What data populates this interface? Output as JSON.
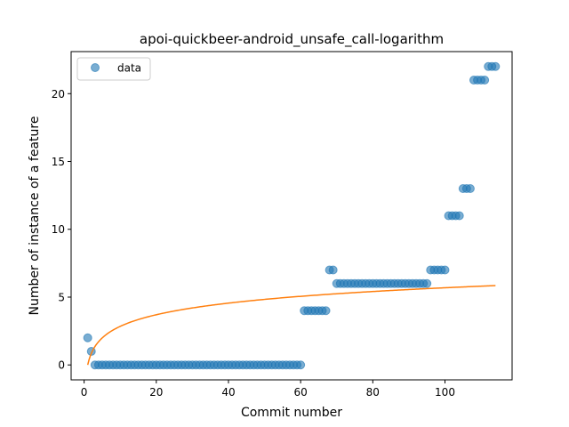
{
  "chart_data": {
    "type": "scatter",
    "title": "apoi-quickbeer-android_unsafe_call-logarithm",
    "xlabel": "Commit number",
    "ylabel": "Number of instance of a feature",
    "xlim": [
      -3.6,
      118.6
    ],
    "ylim": [
      -1.1,
      23.1
    ],
    "xticks": [
      0,
      20,
      40,
      60,
      80,
      100
    ],
    "yticks": [
      0,
      5,
      10,
      15,
      20
    ],
    "grid": false,
    "legend_position": "upper-left",
    "legend": [
      "data"
    ],
    "series": [
      {
        "name": "data",
        "kind": "scatter",
        "color": "#1f77b4",
        "points": [
          [
            1,
            2
          ],
          [
            2,
            1
          ],
          [
            3,
            0
          ],
          [
            4,
            0
          ],
          [
            5,
            0
          ],
          [
            6,
            0
          ],
          [
            7,
            0
          ],
          [
            8,
            0
          ],
          [
            9,
            0
          ],
          [
            10,
            0
          ],
          [
            11,
            0
          ],
          [
            12,
            0
          ],
          [
            13,
            0
          ],
          [
            14,
            0
          ],
          [
            15,
            0
          ],
          [
            16,
            0
          ],
          [
            17,
            0
          ],
          [
            18,
            0
          ],
          [
            19,
            0
          ],
          [
            20,
            0
          ],
          [
            21,
            0
          ],
          [
            22,
            0
          ],
          [
            23,
            0
          ],
          [
            24,
            0
          ],
          [
            25,
            0
          ],
          [
            26,
            0
          ],
          [
            27,
            0
          ],
          [
            28,
            0
          ],
          [
            29,
            0
          ],
          [
            30,
            0
          ],
          [
            31,
            0
          ],
          [
            32,
            0
          ],
          [
            33,
            0
          ],
          [
            34,
            0
          ],
          [
            35,
            0
          ],
          [
            36,
            0
          ],
          [
            37,
            0
          ],
          [
            38,
            0
          ],
          [
            39,
            0
          ],
          [
            40,
            0
          ],
          [
            41,
            0
          ],
          [
            42,
            0
          ],
          [
            43,
            0
          ],
          [
            44,
            0
          ],
          [
            45,
            0
          ],
          [
            46,
            0
          ],
          [
            47,
            0
          ],
          [
            48,
            0
          ],
          [
            49,
            0
          ],
          [
            50,
            0
          ],
          [
            51,
            0
          ],
          [
            52,
            0
          ],
          [
            53,
            0
          ],
          [
            54,
            0
          ],
          [
            55,
            0
          ],
          [
            56,
            0
          ],
          [
            57,
            0
          ],
          [
            58,
            0
          ],
          [
            59,
            0
          ],
          [
            60,
            0
          ],
          [
            61,
            4
          ],
          [
            62,
            4
          ],
          [
            63,
            4
          ],
          [
            64,
            4
          ],
          [
            65,
            4
          ],
          [
            66,
            4
          ],
          [
            67,
            4
          ],
          [
            68,
            7
          ],
          [
            69,
            7
          ],
          [
            70,
            6
          ],
          [
            71,
            6
          ],
          [
            72,
            6
          ],
          [
            73,
            6
          ],
          [
            74,
            6
          ],
          [
            75,
            6
          ],
          [
            76,
            6
          ],
          [
            77,
            6
          ],
          [
            78,
            6
          ],
          [
            79,
            6
          ],
          [
            80,
            6
          ],
          [
            81,
            6
          ],
          [
            82,
            6
          ],
          [
            83,
            6
          ],
          [
            84,
            6
          ],
          [
            85,
            6
          ],
          [
            86,
            6
          ],
          [
            87,
            6
          ],
          [
            88,
            6
          ],
          [
            89,
            6
          ],
          [
            90,
            6
          ],
          [
            91,
            6
          ],
          [
            92,
            6
          ],
          [
            93,
            6
          ],
          [
            94,
            6
          ],
          [
            95,
            6
          ],
          [
            96,
            7
          ],
          [
            97,
            7
          ],
          [
            98,
            7
          ],
          [
            99,
            7
          ],
          [
            100,
            7
          ],
          [
            101,
            11
          ],
          [
            102,
            11
          ],
          [
            103,
            11
          ],
          [
            104,
            11
          ],
          [
            105,
            13
          ],
          [
            106,
            13
          ],
          [
            107,
            13
          ],
          [
            108,
            21
          ],
          [
            109,
            21
          ],
          [
            110,
            21
          ],
          [
            111,
            21
          ],
          [
            112,
            22
          ],
          [
            113,
            22
          ],
          [
            114,
            22
          ]
        ]
      },
      {
        "kind": "line",
        "color": "#ff7f0e",
        "fit": "logarithmic",
        "x_range": [
          1,
          114
        ],
        "y_at_x_min": 0,
        "y_at_x_max": 5.85
      }
    ]
  }
}
